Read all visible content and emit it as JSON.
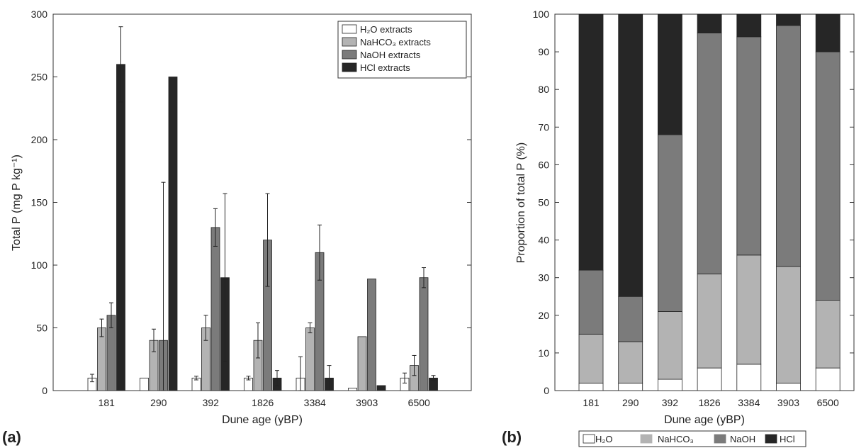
{
  "chart_data": [
    {
      "type": "bar",
      "panel_label": "(a)",
      "xlabel": "Dune age (yBP)",
      "ylabel": "Total P (mg P kg⁻¹)",
      "categories": [
        "181",
        "290",
        "392",
        "1826",
        "3384",
        "3903",
        "6500"
      ],
      "ylim": [
        0,
        300
      ],
      "yticks": [
        0,
        50,
        100,
        150,
        200,
        250,
        300
      ],
      "legend_position": "top-right",
      "series": [
        {
          "name": "H₂O extracts",
          "color": "#ffffff",
          "values": [
            10,
            10,
            10,
            10,
            10,
            2,
            10
          ],
          "errors": [
            3,
            null,
            1.5,
            1.5,
            17,
            null,
            4
          ]
        },
        {
          "name": "NaHCO₃ extracts",
          "color": "#b3b3b3",
          "values": [
            50,
            40,
            50,
            40,
            50,
            43,
            20
          ],
          "errors": [
            7,
            9,
            10,
            14,
            4,
            null,
            8
          ]
        },
        {
          "name": "NaOH extracts",
          "color": "#7b7b7b",
          "values": [
            60,
            40,
            130,
            120,
            110,
            89,
            90
          ],
          "errors": [
            10,
            126,
            15,
            37,
            22,
            null,
            8
          ]
        },
        {
          "name": "HCl extracts",
          "color": "#262626",
          "values": [
            260,
            250,
            90,
            10,
            10,
            4,
            10
          ],
          "errors": [
            30,
            null,
            67,
            6,
            10,
            null,
            2
          ]
        }
      ]
    },
    {
      "type": "bar",
      "stacked": true,
      "panel_label": "(b)",
      "xlabel": "Dune age (yBP)",
      "ylabel": "Proportion of total P (%)",
      "categories": [
        "181",
        "290",
        "392",
        "1826",
        "3384",
        "3903",
        "6500"
      ],
      "ylim": [
        0,
        100
      ],
      "yticks": [
        0,
        10,
        20,
        30,
        40,
        50,
        60,
        70,
        80,
        90,
        100
      ],
      "legend_position": "bottom",
      "series": [
        {
          "name": "H₂O",
          "color": "#ffffff",
          "values": [
            2,
            2,
            3,
            6,
            7,
            2,
            6
          ]
        },
        {
          "name": "NaHCO₃",
          "color": "#b3b3b3",
          "values": [
            13,
            11,
            18,
            25,
            29,
            31,
            18
          ]
        },
        {
          "name": "NaOH",
          "color": "#7b7b7b",
          "values": [
            17,
            12,
            47,
            64,
            58,
            64,
            66
          ]
        },
        {
          "name": "HCl",
          "color": "#262626",
          "values": [
            68,
            75,
            32,
            5,
            6,
            3,
            10
          ]
        }
      ]
    }
  ]
}
